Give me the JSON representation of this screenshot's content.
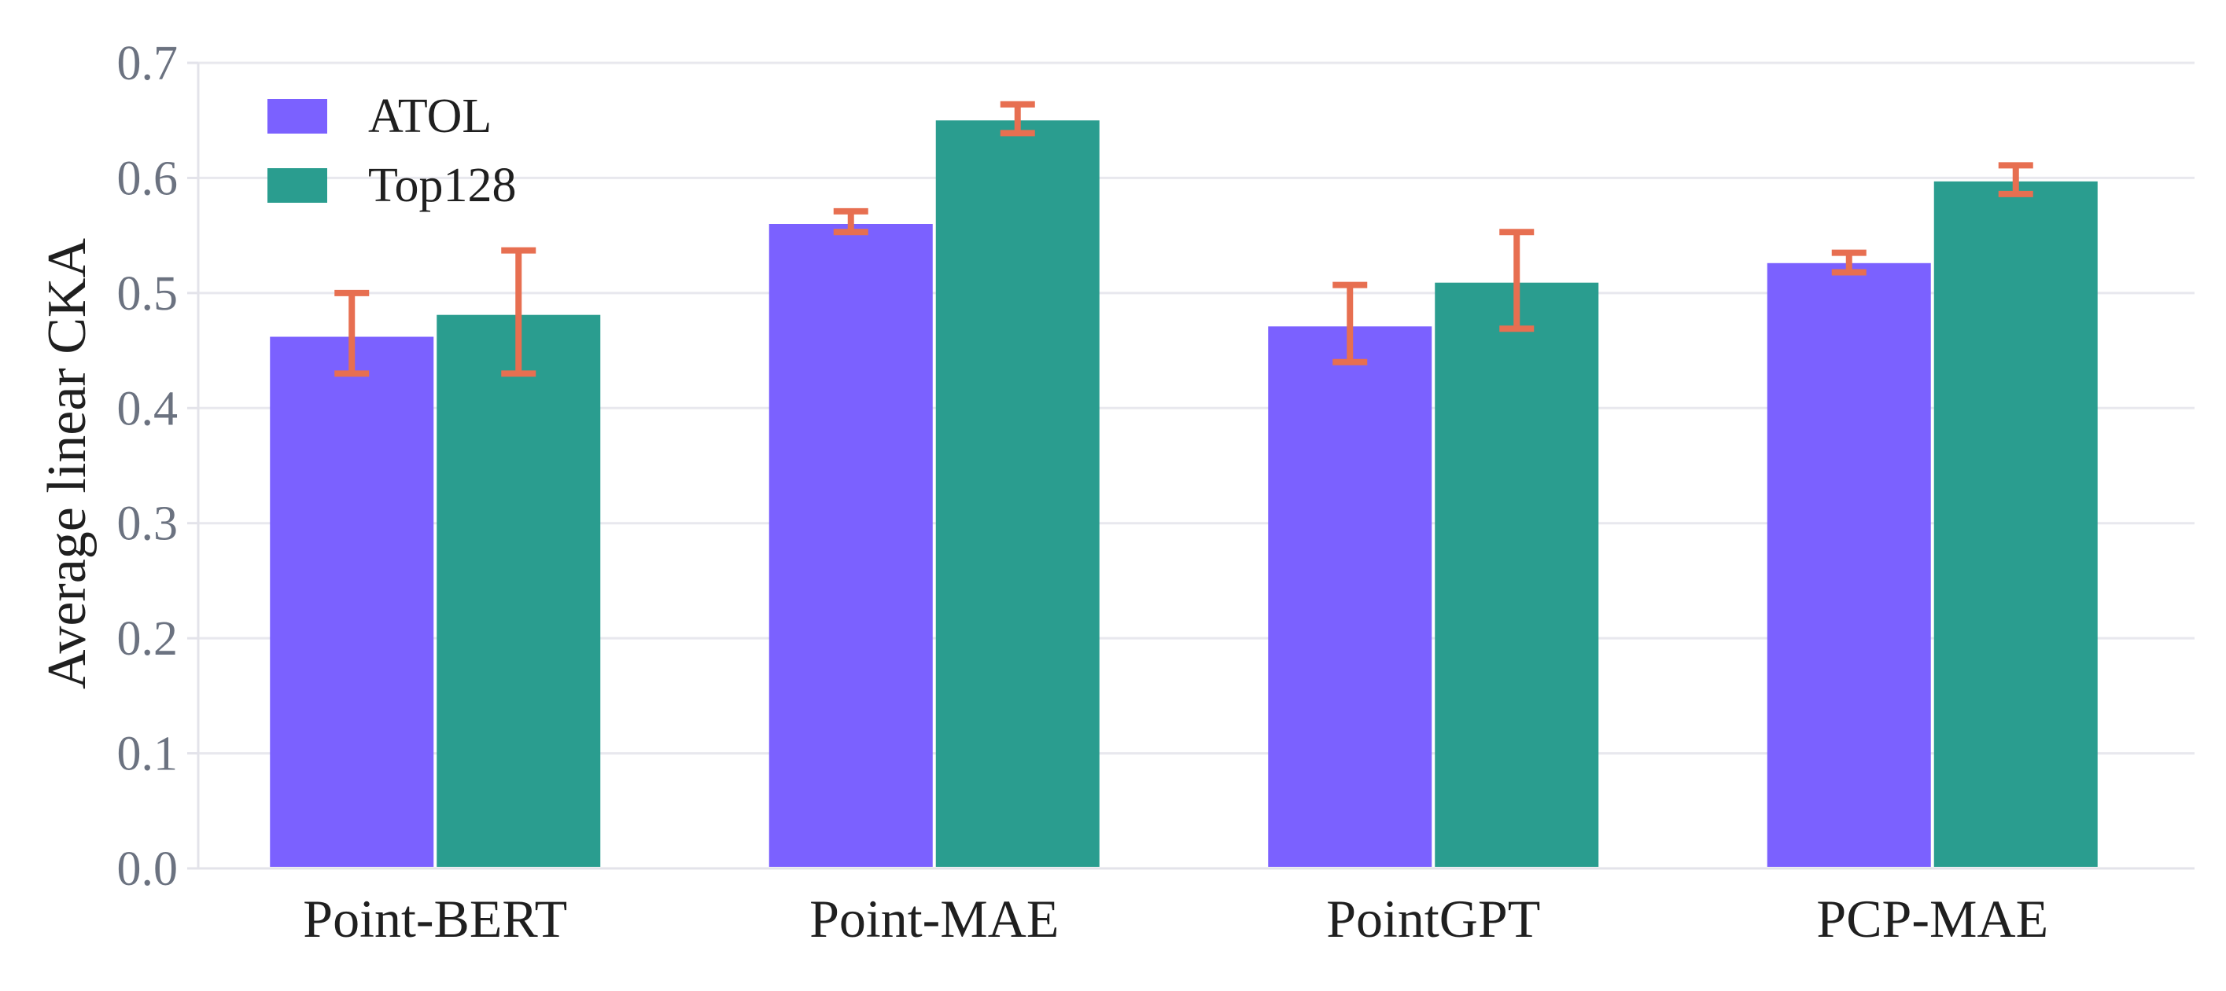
{
  "chart_data": {
    "type": "bar",
    "title": "",
    "xlabel": "",
    "ylabel": "Average linear CKA",
    "ylim": [
      0.0,
      0.7
    ],
    "yticks": [
      "0.0",
      "0.1",
      "0.2",
      "0.3",
      "0.4",
      "0.5",
      "0.6",
      "0.7"
    ],
    "grid": true,
    "legend_position": "top-left",
    "categories": [
      "Point-BERT",
      "Point-MAE",
      "PointGPT",
      "PCP-MAE"
    ],
    "series": [
      {
        "name": "ATOL",
        "color": "#7b61ff",
        "values": [
          0.462,
          0.56,
          0.471,
          0.526
        ],
        "err_low": [
          0.43,
          0.553,
          0.44,
          0.518
        ],
        "err_high": [
          0.5,
          0.571,
          0.507,
          0.535
        ]
      },
      {
        "name": "Top128",
        "color": "#2a9d8f",
        "values": [
          0.481,
          0.65,
          0.509,
          0.597
        ],
        "err_low": [
          0.43,
          0.639,
          0.469,
          0.586
        ],
        "err_high": [
          0.537,
          0.664,
          0.553,
          0.611
        ]
      }
    ],
    "error_bar_color": "#e76f51"
  }
}
